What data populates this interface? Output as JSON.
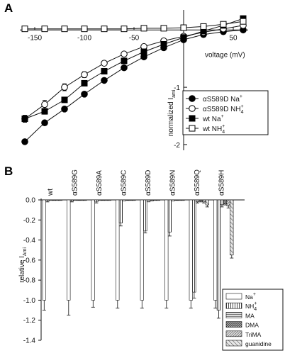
{
  "panel_a_label": "A",
  "panel_b_label": "B",
  "chart_data": [
    {
      "type": "line",
      "panel": "A",
      "xlabel": "voltage (mV)",
      "ylabel": "normalized I_ami",
      "ylabel_main": "normalized I",
      "ylabel_sub": "ami",
      "xlim": [
        -165,
        65
      ],
      "ylim": [
        -2.1,
        0.35
      ],
      "xticks": [
        -150,
        -100,
        -50,
        50
      ],
      "xtick_labels": [
        "-150",
        "-100",
        "-50",
        "50"
      ],
      "yticks": [
        -1,
        -2
      ],
      "ytick_labels": [
        "-1",
        "-2"
      ],
      "legend_position": "lower-right",
      "x": [
        -160,
        -140,
        -120,
        -100,
        -80,
        -60,
        -40,
        -20,
        0,
        20,
        40,
        60
      ],
      "series": [
        {
          "name": "αS589D Na⁺",
          "label_main": "αS589D Na",
          "label_sup": "+",
          "marker": "circle-filled",
          "values": [
            -1.95,
            -1.62,
            -1.38,
            -1.12,
            -0.88,
            -0.66,
            -0.47,
            -0.31,
            -0.17,
            -0.08,
            -0.03,
            0.0
          ],
          "errors": [
            0,
            0,
            0,
            0,
            0,
            0,
            0,
            0,
            0,
            0,
            0,
            0
          ]
        },
        {
          "name": "αS589D NH₄⁺",
          "label_main": "αS589D NH",
          "label_sub": "4",
          "label_sup": "+",
          "marker": "circle-open",
          "values": [
            -1.55,
            -1.3,
            -1.0,
            -0.78,
            -0.58,
            -0.42,
            -0.29,
            -0.19,
            -0.11,
            -0.04,
            0.02,
            0.08
          ],
          "errors": [
            0.06,
            0.07,
            0.06,
            0.05,
            0.03,
            0.02,
            0.02,
            0,
            0,
            0,
            0,
            0
          ]
        },
        {
          "name": "wt Na⁺",
          "label_main": "wt Na",
          "label_sup": "+",
          "marker": "square-filled",
          "values": [
            -1.55,
            -1.42,
            -1.22,
            -0.93,
            -0.72,
            -0.54,
            -0.38,
            -0.25,
            -0.13,
            -0.02,
            0.08,
            0.2
          ],
          "errors": [
            0.06,
            0.05,
            0.04,
            0.03,
            0.02,
            0.02,
            0,
            0,
            0,
            0,
            0,
            0
          ]
        },
        {
          "name": "wt NH₄⁺",
          "label_main": "wt NH",
          "label_sub": "4",
          "label_sup": "+",
          "marker": "square-open",
          "values": [
            0.02,
            0.02,
            0.02,
            0.02,
            0.02,
            0.02,
            0.03,
            0.03,
            0.04,
            0.06,
            0.1,
            0.15
          ],
          "errors": [
            0,
            0,
            0,
            0,
            0,
            0,
            0,
            0,
            0,
            0,
            0,
            0
          ]
        }
      ]
    },
    {
      "type": "bar",
      "panel": "B",
      "ylabel": "relative I_Ami",
      "ylabel_main": "relative I",
      "ylabel_sub": "Ami",
      "ylim": [
        -1.4,
        0.0
      ],
      "yticks": [
        0.0,
        -0.2,
        -0.4,
        -0.6,
        -0.8,
        -1.0,
        -1.2,
        -1.4
      ],
      "ytick_labels": [
        "0.0",
        "-0.2",
        "-0.4",
        "-0.6",
        "-0.8",
        "-1.0",
        "-1.2",
        "-1.4"
      ],
      "legend_position": "lower-right",
      "categories": [
        "wt",
        "αS589G",
        "αS589A",
        "αS589C",
        "αS589D",
        "αS589N",
        "αS589Q",
        "αS589H"
      ],
      "series": [
        {
          "name": "Na⁺",
          "label_main": "Na",
          "label_sup": "+",
          "pattern": "open",
          "values": [
            -1.0,
            -1.0,
            -1.0,
            -1.0,
            -1.0,
            -1.0,
            -1.0,
            -1.0
          ],
          "errors": [
            0.1,
            0.15,
            0.07,
            0.08,
            0.08,
            0.08,
            0.08,
            0.08
          ]
        },
        {
          "name": "NH₄⁺",
          "label_main": "NH",
          "label_sub": "4",
          "label_sup": "+",
          "pattern": "vertical-stripes",
          "values": [
            -0.01,
            -0.01,
            -0.02,
            -0.23,
            -0.31,
            -0.32,
            -0.92,
            -1.1
          ],
          "errors": [
            0.01,
            0.01,
            0.01,
            0.03,
            0.02,
            0.04,
            0.06,
            0.08
          ]
        },
        {
          "name": "MA",
          "pattern": "horizontal-lines",
          "values": [
            0.0,
            0.0,
            0.0,
            -0.01,
            -0.02,
            -0.01,
            -0.02,
            -0.05
          ],
          "errors": [
            0,
            0,
            0,
            0,
            0,
            0,
            0.01,
            0.02
          ]
        },
        {
          "name": "DMA",
          "pattern": "cross-hatch",
          "values": [
            0.0,
            0.0,
            0.0,
            0.0,
            -0.01,
            0.0,
            -0.01,
            -0.04
          ],
          "errors": [
            0,
            0,
            0,
            0,
            0,
            0,
            0.01,
            0.01
          ]
        },
        {
          "name": "TriMA",
          "pattern": "diagonal-dense",
          "values": [
            0.0,
            0.0,
            0.0,
            0.0,
            0.0,
            0.0,
            -0.02,
            -0.06
          ],
          "errors": [
            0,
            0,
            0,
            0,
            0,
            0,
            0.01,
            0.02
          ]
        },
        {
          "name": "guanidine",
          "pattern": "diagonal-hatch",
          "values": [
            0.0,
            0.0,
            0.0,
            0.0,
            0.0,
            0.0,
            -0.05,
            -0.55
          ],
          "errors": [
            0,
            0,
            0,
            0,
            0,
            0,
            0.02,
            0.03
          ]
        }
      ]
    }
  ]
}
